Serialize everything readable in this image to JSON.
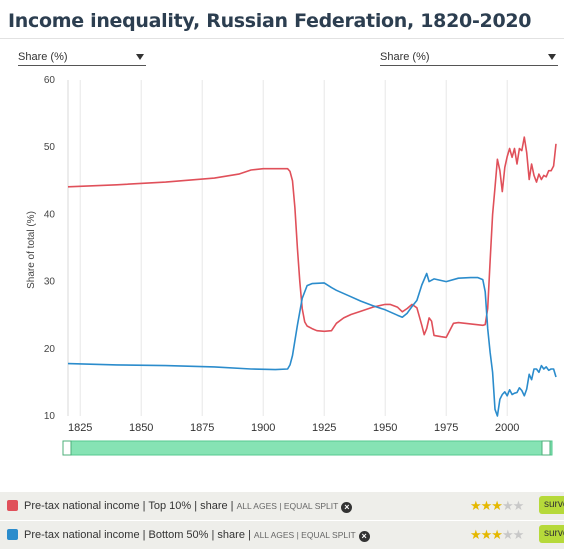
{
  "page": {
    "title": "Income inequality, Russian Federation, 1820-2020"
  },
  "dropdowns": {
    "left_label": "Share (%)",
    "right_label": "Share (%)"
  },
  "chart_data": {
    "type": "line",
    "title": "Income inequality, Russian Federation, 1820-2020",
    "xlabel": "",
    "ylabel": "Share of total (%)",
    "xlim": [
      1820,
      2020
    ],
    "ylim": [
      10,
      60
    ],
    "xticks": [
      1825,
      1850,
      1875,
      1900,
      1925,
      1950,
      1975,
      2000
    ],
    "yticks": [
      10,
      20,
      30,
      40,
      50,
      60
    ],
    "grid": "vertical",
    "legend": "bottom",
    "series": [
      {
        "name": "Pre-tax national income | Top 10% | share | ALL AGES | EQUAL SPLIT",
        "color": "#e0505a",
        "points": [
          [
            1820,
            44.1
          ],
          [
            1840,
            44.4
          ],
          [
            1860,
            44.8
          ],
          [
            1880,
            45.4
          ],
          [
            1890,
            46.0
          ],
          [
            1895,
            46.6
          ],
          [
            1900,
            46.8
          ],
          [
            1910,
            46.8
          ],
          [
            1911,
            46.4
          ],
          [
            1912,
            45.0
          ],
          [
            1913,
            41.0
          ],
          [
            1914,
            35.0
          ],
          [
            1915,
            30.0
          ],
          [
            1916,
            26.0
          ],
          [
            1917,
            24.0
          ],
          [
            1918,
            23.4
          ],
          [
            1920,
            23.0
          ],
          [
            1922,
            22.7
          ],
          [
            1925,
            22.6
          ],
          [
            1928,
            22.7
          ],
          [
            1930,
            23.8
          ],
          [
            1933,
            24.6
          ],
          [
            1936,
            25.1
          ],
          [
            1940,
            25.6
          ],
          [
            1945,
            26.2
          ],
          [
            1950,
            26.6
          ],
          [
            1952,
            26.6
          ],
          [
            1955,
            26.2
          ],
          [
            1957,
            25.5
          ],
          [
            1959,
            26.0
          ],
          [
            1961,
            26.6
          ],
          [
            1963,
            26.1
          ],
          [
            1965,
            23.5
          ],
          [
            1966,
            22.1
          ],
          [
            1967,
            23.0
          ],
          [
            1968,
            24.6
          ],
          [
            1969,
            24.1
          ],
          [
            1970,
            22.0
          ],
          [
            1973,
            21.8
          ],
          [
            1975,
            21.7
          ],
          [
            1976,
            22.4
          ],
          [
            1978,
            23.8
          ],
          [
            1980,
            23.9
          ],
          [
            1985,
            23.7
          ],
          [
            1990,
            23.5
          ],
          [
            1991,
            23.6
          ],
          [
            1992,
            26.0
          ],
          [
            1993,
            33.0
          ],
          [
            1994,
            40.0
          ],
          [
            1995,
            44.0
          ],
          [
            1996,
            48.2
          ],
          [
            1997,
            46.5
          ],
          [
            1998,
            43.4
          ],
          [
            1999,
            47.0
          ],
          [
            2000,
            48.6
          ],
          [
            2001,
            49.8
          ],
          [
            2002,
            48.5
          ],
          [
            2003,
            49.8
          ],
          [
            2004,
            47.5
          ],
          [
            2005,
            49.8
          ],
          [
            2006,
            49.5
          ],
          [
            2007,
            51.5
          ],
          [
            2008,
            49.2
          ],
          [
            2009,
            45.2
          ],
          [
            2010,
            47.5
          ],
          [
            2011,
            45.8
          ],
          [
            2012,
            44.8
          ],
          [
            2013,
            46.0
          ],
          [
            2014,
            45.2
          ],
          [
            2015,
            45.8
          ],
          [
            2016,
            45.6
          ],
          [
            2017,
            46.5
          ],
          [
            2018,
            46.5
          ],
          [
            2019,
            47.2
          ],
          [
            2020,
            50.5
          ]
        ]
      },
      {
        "name": "Pre-tax national income | Bottom 50% | share | ALL AGES | EQUAL SPLIT",
        "color": "#2b8ccc",
        "points": [
          [
            1820,
            17.8
          ],
          [
            1840,
            17.6
          ],
          [
            1860,
            17.5
          ],
          [
            1880,
            17.3
          ],
          [
            1895,
            17.0
          ],
          [
            1905,
            16.9
          ],
          [
            1910,
            17.0
          ],
          [
            1911,
            17.6
          ],
          [
            1912,
            19.0
          ],
          [
            1914,
            23.5
          ],
          [
            1916,
            27.5
          ],
          [
            1918,
            29.4
          ],
          [
            1920,
            29.7
          ],
          [
            1925,
            29.8
          ],
          [
            1928,
            29.1
          ],
          [
            1930,
            28.7
          ],
          [
            1935,
            27.9
          ],
          [
            1940,
            27.1
          ],
          [
            1945,
            26.4
          ],
          [
            1950,
            25.8
          ],
          [
            1955,
            25.0
          ],
          [
            1957,
            24.7
          ],
          [
            1959,
            25.3
          ],
          [
            1961,
            26.3
          ],
          [
            1963,
            27.2
          ],
          [
            1965,
            29.5
          ],
          [
            1967,
            31.2
          ],
          [
            1968,
            30.0
          ],
          [
            1970,
            30.4
          ],
          [
            1975,
            30.0
          ],
          [
            1980,
            30.5
          ],
          [
            1985,
            30.6
          ],
          [
            1988,
            30.6
          ],
          [
            1990,
            30.3
          ],
          [
            1991,
            28.5
          ],
          [
            1992,
            23.0
          ],
          [
            1993,
            19.5
          ],
          [
            1994,
            16.5
          ],
          [
            1995,
            11.0
          ],
          [
            1996,
            10.0
          ],
          [
            1997,
            12.5
          ],
          [
            1998,
            13.2
          ],
          [
            1999,
            13.6
          ],
          [
            2000,
            13.0
          ],
          [
            2001,
            13.9
          ],
          [
            2002,
            13.2
          ],
          [
            2003,
            13.4
          ],
          [
            2004,
            13.5
          ],
          [
            2005,
            14.2
          ],
          [
            2006,
            13.8
          ],
          [
            2007,
            13.0
          ],
          [
            2008,
            14.0
          ],
          [
            2009,
            16.2
          ],
          [
            2010,
            15.4
          ],
          [
            2011,
            17.0
          ],
          [
            2012,
            17.0
          ],
          [
            2013,
            16.5
          ],
          [
            2014,
            17.5
          ],
          [
            2015,
            17.0
          ],
          [
            2016,
            17.3
          ],
          [
            2017,
            16.8
          ],
          [
            2018,
            17.0
          ],
          [
            2019,
            17.0
          ],
          [
            2020,
            15.8
          ]
        ]
      }
    ]
  },
  "legend_items": [
    {
      "color": "#e0505a",
      "text_main": "Pre-tax national income  | Top 10% | share | ",
      "text_small": "ALL AGES | EQUAL SPLIT",
      "close_icon": "×",
      "stars_on": "★★★",
      "stars_off": "★★",
      "survey_label": "survey"
    },
    {
      "color": "#2b8ccc",
      "text_main": "Pre-tax national income  | Bottom 50% | share | ",
      "text_small": "ALL AGES | EQUAL SPLIT",
      "close_icon": "×",
      "stars_on": "★★★",
      "stars_off": "★★",
      "survey_label": "survey"
    }
  ]
}
